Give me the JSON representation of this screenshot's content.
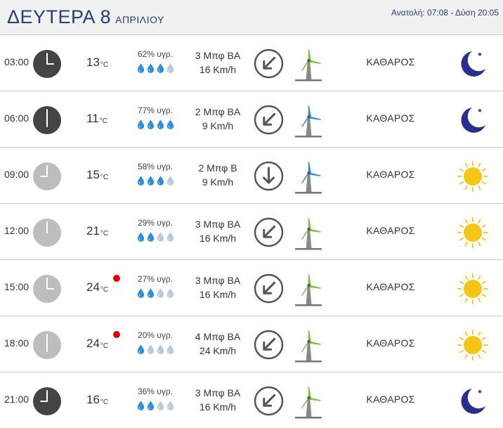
{
  "header": {
    "day": "ΔΕΥΤΕΡΑ 8",
    "month": "ΑΠΡΙΛΙΟΥ",
    "sun_info": "Ανατολή: 07:08  - Δύση 20:05"
  },
  "rows": [
    {
      "time": "03:00",
      "clock_hour": 3,
      "night": true,
      "temp": "13",
      "unit": "°C",
      "hot": false,
      "humidity": "62% υγρ.",
      "drops": 3,
      "wind_bft": "3 Μπφ ΒΑ",
      "wind_speed": "16 Km/h",
      "direction": "ΒΑ",
      "turbine": "green",
      "condition": "ΚΑΘΑΡΟΣ",
      "icon": "moon-icon"
    },
    {
      "time": "06:00",
      "clock_hour": 6,
      "night": true,
      "temp": "11",
      "unit": "°C",
      "hot": false,
      "humidity": "77% υγρ.",
      "drops": 4,
      "wind_bft": "2 Μπφ ΒΑ",
      "wind_speed": "9 Km/h",
      "direction": "ΒΑ",
      "turbine": "blue",
      "condition": "ΚΑΘΑΡΟΣ",
      "icon": "moon-icon"
    },
    {
      "time": "09:00",
      "clock_hour": 9,
      "night": false,
      "temp": "15",
      "unit": "°C",
      "hot": false,
      "humidity": "58% υγρ.",
      "drops": 3,
      "wind_bft": "2 Μπφ Β",
      "wind_speed": "9 Km/h",
      "direction": "Β",
      "turbine": "blue",
      "condition": "ΚΑΘΑΡΟΣ",
      "icon": "sun-icon"
    },
    {
      "time": "12:00",
      "clock_hour": 12,
      "night": false,
      "temp": "21",
      "unit": "°C",
      "hot": false,
      "humidity": "29% υγρ.",
      "drops": 2,
      "wind_bft": "3 Μπφ ΒΑ",
      "wind_speed": "16 Km/h",
      "direction": "ΒΑ",
      "turbine": "green",
      "condition": "ΚΑΘΑΡΟΣ",
      "icon": "sun-icon"
    },
    {
      "time": "15:00",
      "clock_hour": 3,
      "night": false,
      "temp": "24",
      "unit": "°C",
      "hot": true,
      "humidity": "27% υγρ.",
      "drops": 2,
      "wind_bft": "3 Μπφ ΒΑ",
      "wind_speed": "16 Km/h",
      "direction": "ΒΑ",
      "turbine": "green",
      "condition": "ΚΑΘΑΡΟΣ",
      "icon": "sun-icon"
    },
    {
      "time": "18:00",
      "clock_hour": 6,
      "night": false,
      "temp": "24",
      "unit": "°C",
      "hot": true,
      "humidity": "20% υγρ.",
      "drops": 1,
      "wind_bft": "4 Μπφ ΒΑ",
      "wind_speed": "24 Km/h",
      "direction": "ΒΑ",
      "turbine": "green",
      "condition": "ΚΑΘΑΡΟΣ",
      "icon": "sun-icon"
    },
    {
      "time": "21:00",
      "clock_hour": 9,
      "night": true,
      "temp": "16",
      "unit": "°C",
      "hot": false,
      "humidity": "36% υγρ.",
      "drops": 2,
      "wind_bft": "3 Μπφ ΒΑ",
      "wind_speed": "16 Km/h",
      "direction": "ΒΑ",
      "turbine": "green",
      "condition": "ΚΑΘΑΡΟΣ",
      "icon": "moon-icon"
    }
  ],
  "colors": {
    "title": "#2a3a7a",
    "clock_night": "#444444",
    "clock_day": "#bdbdbd",
    "drop_full": "#2f8fd8",
    "drop_empty": "#b9c9d6",
    "hot_dot": "#e30000",
    "turbine_green": "#7ac143",
    "turbine_blue": "#3a8fd0",
    "moon": "#2a2f8f",
    "sun": "#f5c518"
  }
}
